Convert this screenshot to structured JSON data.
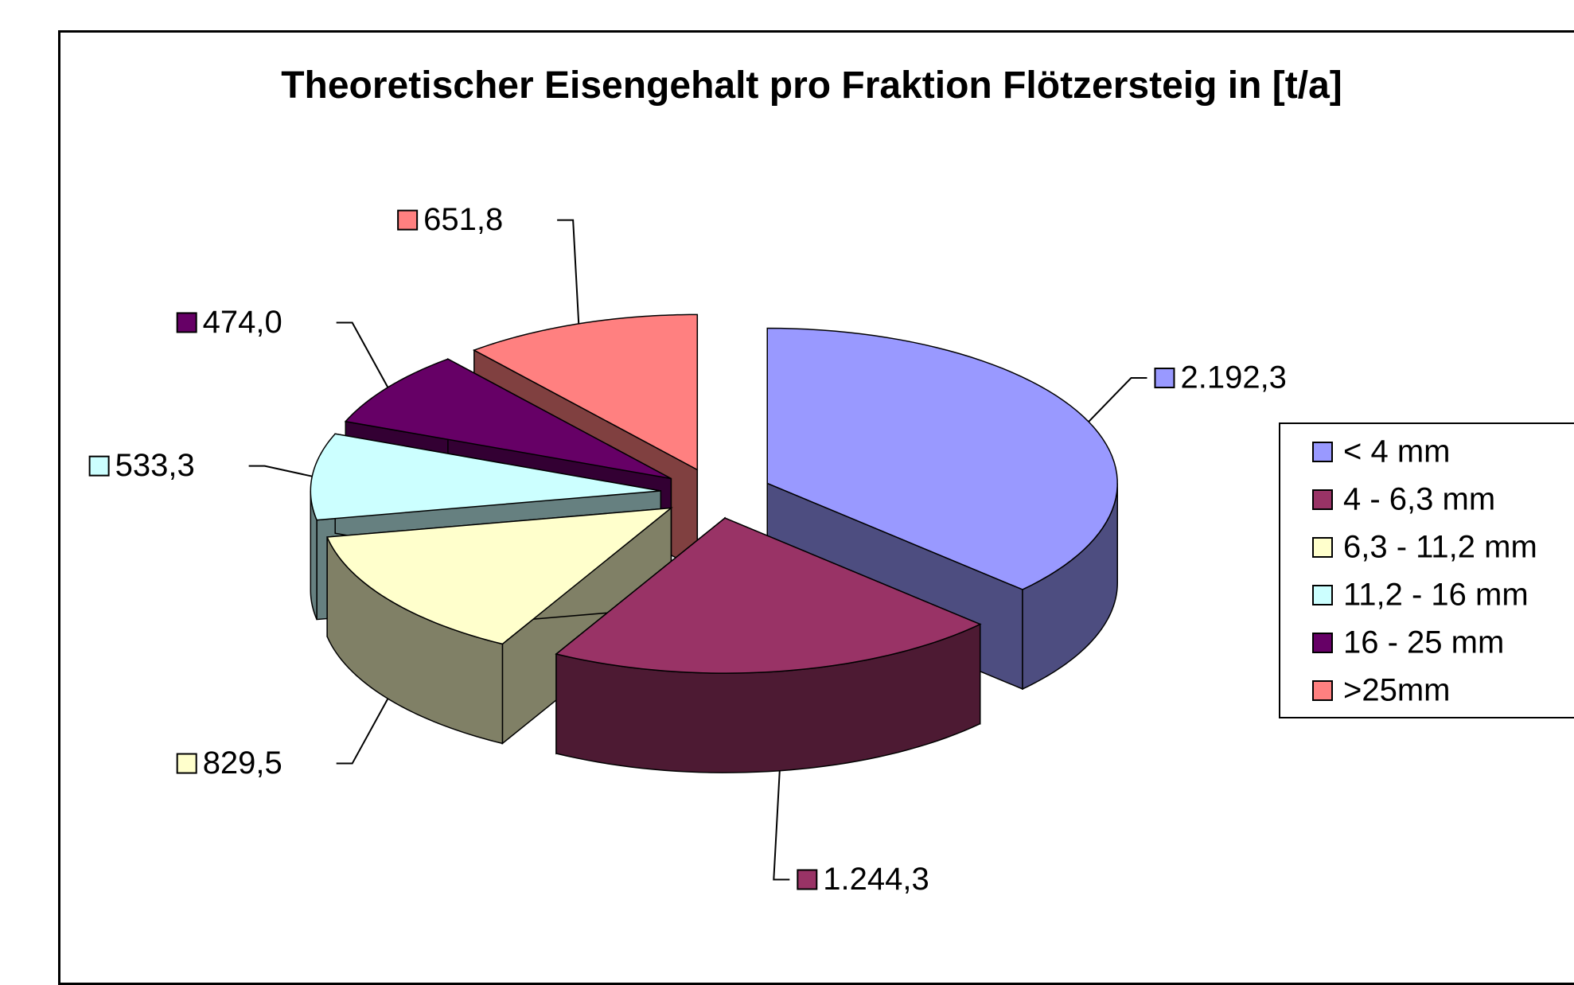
{
  "chart_data": {
    "type": "pie3d",
    "title": "Theoretischer Eisengehalt pro Fraktion Flötzersteig  in [t/a]",
    "categories": [
      "< 4 mm",
      "4 - 6,3 mm",
      "6,3 - 11,2 mm",
      "11,2 - 16 mm",
      "16 - 25 mm",
      ">25mm"
    ],
    "values": [
      2192.3,
      1244.3,
      829.5,
      533.3,
      474.0,
      651.8
    ],
    "value_labels": [
      "2.192,3",
      "1.244,3",
      "829,5",
      "533,3",
      "474,0",
      "651,8"
    ],
    "colors": [
      "#9999ff",
      "#993366",
      "#ffffcc",
      "#ccffff",
      "#660066",
      "#ff8080"
    ],
    "legend": "right"
  }
}
